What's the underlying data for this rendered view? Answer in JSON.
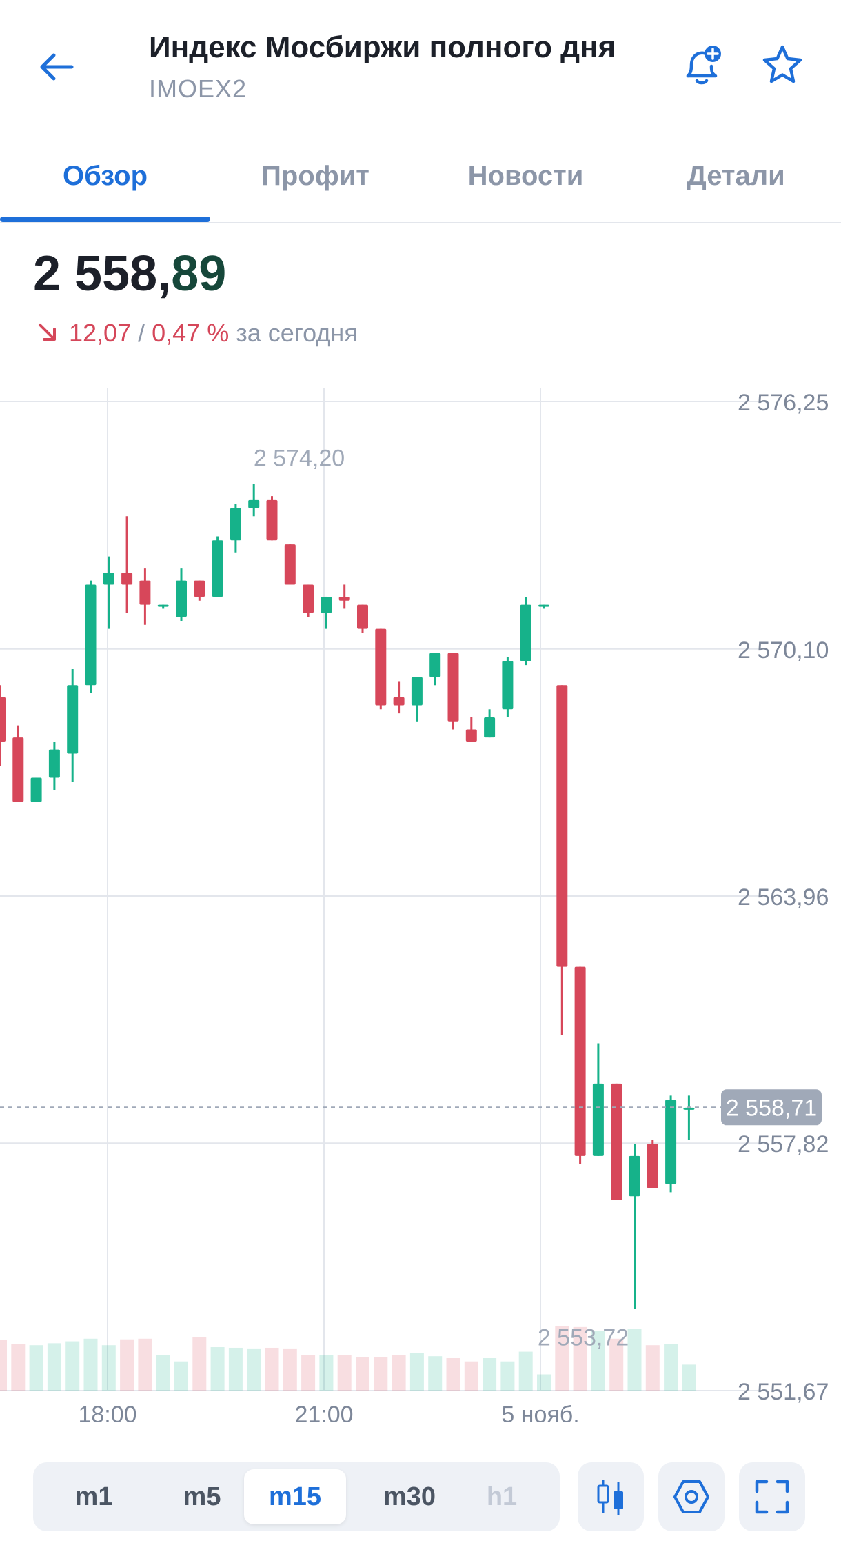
{
  "header": {
    "title": "Индекс Мосбиржи полного дня",
    "ticker": "IMOEX2",
    "icons": {
      "back": "arrow-left-icon",
      "bell": "bell-plus-icon",
      "star": "star-outline-icon"
    }
  },
  "tabs": [
    {
      "label": "Обзор",
      "active": true
    },
    {
      "label": "Профит",
      "active": false
    },
    {
      "label": "Новости",
      "active": false
    },
    {
      "label": "Детали",
      "active": false
    }
  ],
  "quote": {
    "price_int": "2 558,",
    "price_frac": "89",
    "change_abs": "12,07",
    "separator": "/",
    "change_pct": "0,47 %",
    "period": "за сегодня",
    "direction": "down"
  },
  "chart_data": {
    "type": "candlestick",
    "y_ticks": [
      "2 576,25",
      "2 570,10",
      "2 563,96",
      "2 557,82",
      "2 551,67"
    ],
    "y_tick_values": [
      2576.25,
      2570.1,
      2563.96,
      2557.82,
      2551.67
    ],
    "ylim": [
      2551.67,
      2576.25
    ],
    "x_ticks": [
      "18:00",
      "21:00",
      "5 нояб."
    ],
    "high_label": "2 574,20",
    "low_label": "2 553,72",
    "current_price_label": "2 558,71",
    "current_price": 2558.71,
    "grid": true,
    "colors": {
      "up": "#16b28a",
      "down": "#d7475a",
      "grid": "#e3e6ec",
      "axis_text": "#7d8799",
      "badge": "#a0a9b8"
    },
    "candles": [
      {
        "o": 2568.9,
        "h": 2569.2,
        "l": 2567.2,
        "c": 2567.8
      },
      {
        "o": 2567.9,
        "h": 2568.2,
        "l": 2566.3,
        "c": 2566.3
      },
      {
        "o": 2566.3,
        "h": 2566.9,
        "l": 2566.3,
        "c": 2566.9
      },
      {
        "o": 2566.9,
        "h": 2567.8,
        "l": 2566.6,
        "c": 2567.6
      },
      {
        "o": 2567.5,
        "h": 2569.6,
        "l": 2566.8,
        "c": 2569.2
      },
      {
        "o": 2569.2,
        "h": 2571.8,
        "l": 2569.0,
        "c": 2571.7
      },
      {
        "o": 2571.7,
        "h": 2572.4,
        "l": 2570.6,
        "c": 2572.0
      },
      {
        "o": 2572.0,
        "h": 2573.4,
        "l": 2571.0,
        "c": 2571.7
      },
      {
        "o": 2571.8,
        "h": 2572.1,
        "l": 2570.7,
        "c": 2571.2
      },
      {
        "o": 2571.2,
        "h": 2571.2,
        "l": 2571.1,
        "c": 2571.2
      },
      {
        "o": 2570.9,
        "h": 2572.1,
        "l": 2570.8,
        "c": 2571.8
      },
      {
        "o": 2571.8,
        "h": 2571.8,
        "l": 2571.3,
        "c": 2571.4
      },
      {
        "o": 2571.4,
        "h": 2572.9,
        "l": 2571.4,
        "c": 2572.8
      },
      {
        "o": 2572.8,
        "h": 2573.7,
        "l": 2572.5,
        "c": 2573.6
      },
      {
        "o": 2573.6,
        "h": 2574.2,
        "l": 2573.4,
        "c": 2573.8
      },
      {
        "o": 2573.8,
        "h": 2573.9,
        "l": 2572.8,
        "c": 2572.8
      },
      {
        "o": 2572.7,
        "h": 2572.7,
        "l": 2571.7,
        "c": 2571.7
      },
      {
        "o": 2571.7,
        "h": 2571.7,
        "l": 2570.9,
        "c": 2571.0
      },
      {
        "o": 2571.0,
        "h": 2571.4,
        "l": 2570.6,
        "c": 2571.4
      },
      {
        "o": 2571.4,
        "h": 2571.7,
        "l": 2571.1,
        "c": 2571.3
      },
      {
        "o": 2571.2,
        "h": 2571.2,
        "l": 2570.5,
        "c": 2570.6
      },
      {
        "o": 2570.6,
        "h": 2570.6,
        "l": 2568.6,
        "c": 2568.7
      },
      {
        "o": 2568.9,
        "h": 2569.3,
        "l": 2568.5,
        "c": 2568.7
      },
      {
        "o": 2568.7,
        "h": 2569.2,
        "l": 2568.3,
        "c": 2569.4
      },
      {
        "o": 2569.4,
        "h": 2570.0,
        "l": 2569.2,
        "c": 2570.0
      },
      {
        "o": 2570.0,
        "h": 2570.0,
        "l": 2568.1,
        "c": 2568.3
      },
      {
        "o": 2568.1,
        "h": 2568.4,
        "l": 2567.8,
        "c": 2567.8
      },
      {
        "o": 2567.9,
        "h": 2568.6,
        "l": 2567.9,
        "c": 2568.4
      },
      {
        "o": 2568.6,
        "h": 2569.9,
        "l": 2568.4,
        "c": 2569.8
      },
      {
        "o": 2569.8,
        "h": 2571.4,
        "l": 2569.7,
        "c": 2571.2
      },
      {
        "o": 2571.2,
        "h": 2571.2,
        "l": 2571.1,
        "c": 2571.2
      },
      {
        "o": 2569.2,
        "h": 2569.2,
        "l": 2560.5,
        "c": 2562.2
      },
      {
        "o": 2562.2,
        "h": 2562.2,
        "l": 2557.3,
        "c": 2557.5
      },
      {
        "o": 2557.5,
        "h": 2560.3,
        "l": 2557.5,
        "c": 2559.3
      },
      {
        "o": 2559.3,
        "h": 2559.3,
        "l": 2556.4,
        "c": 2556.4
      },
      {
        "o": 2556.5,
        "h": 2557.8,
        "l": 2553.7,
        "c": 2557.5
      },
      {
        "o": 2557.8,
        "h": 2557.9,
        "l": 2556.7,
        "c": 2556.7
      },
      {
        "o": 2556.8,
        "h": 2559.0,
        "l": 2556.6,
        "c": 2558.9
      },
      {
        "o": 2558.7,
        "h": 2559.0,
        "l": 2557.9,
        "c": 2558.7
      }
    ],
    "volumes": [
      0.78,
      0.72,
      0.7,
      0.73,
      0.76,
      0.8,
      0.7,
      0.79,
      0.8,
      0.55,
      0.45,
      0.82,
      0.67,
      0.66,
      0.65,
      0.66,
      0.65,
      0.55,
      0.55,
      0.55,
      0.52,
      0.52,
      0.55,
      0.58,
      0.53,
      0.5,
      0.45,
      0.5,
      0.45,
      0.6,
      0.25,
      1.0,
      0.98,
      0.92,
      0.8,
      0.95,
      0.7,
      0.72,
      0.4
    ]
  },
  "timeframes": [
    {
      "label": "m1",
      "state": "normal"
    },
    {
      "label": "m5",
      "state": "normal"
    },
    {
      "label": "m15",
      "state": "active"
    },
    {
      "label": "m30",
      "state": "normal"
    },
    {
      "label": "h1",
      "state": "disabled"
    }
  ],
  "tools": {
    "chart_type": "candlestick-icon",
    "indicators": "hexagon-settings-icon",
    "fullscreen": "fullscreen-icon"
  }
}
